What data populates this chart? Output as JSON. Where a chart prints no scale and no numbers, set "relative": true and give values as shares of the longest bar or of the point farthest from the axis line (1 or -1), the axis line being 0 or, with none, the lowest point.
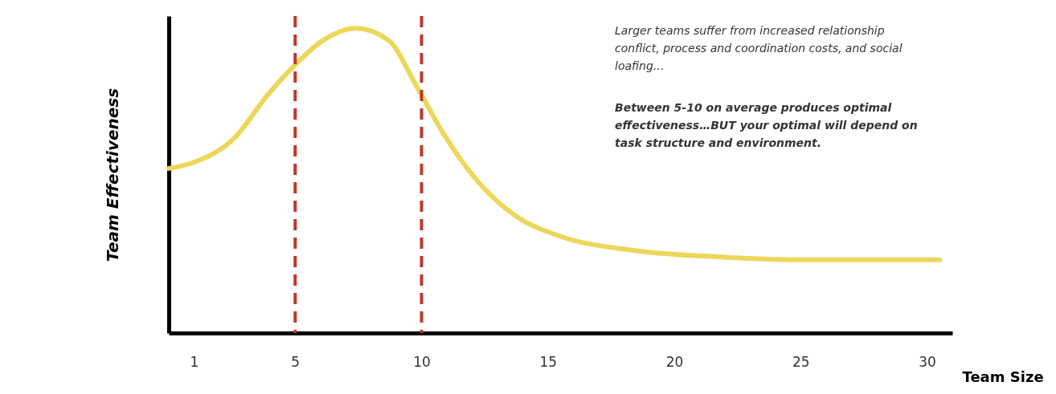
{
  "chart_data": {
    "type": "line",
    "relative": true,
    "xlabel": "Team Size",
    "ylabel": "Team Effectiveness",
    "xlim": [
      0,
      31
    ],
    "xticks": [
      1,
      5,
      10,
      15,
      20,
      25,
      30
    ],
    "x": [
      0,
      1,
      2.6,
      3.9,
      5,
      6.1,
      7.4,
      8.7,
      9.8,
      10.9,
      12.2,
      13.8,
      15.4,
      18.5,
      21.7,
      24.9,
      30.5
    ],
    "series": [
      {
        "color": "#ecd75a",
        "values": [
          0.54,
          0.56,
          0.64,
          0.78,
          0.88,
          0.96,
          1,
          0.96,
          0.81,
          0.65,
          0.5,
          0.38,
          0.32,
          0.27,
          0.25,
          0.24,
          0.24
        ]
      }
    ],
    "ref_lines": [
      {
        "axis": "x",
        "value": 5,
        "color": "#c0392b",
        "line_style": "dashed"
      },
      {
        "axis": "x",
        "value": 10,
        "color": "#c0392b",
        "line_style": "dashed"
      }
    ],
    "annotations": [
      "Larger teams suffer from increased relationship conflict, process and coordination costs, and social loafing…",
      "Between 5-10 on average produces optimal effectiveness…BUT your optimal will depend on task structure and environment."
    ],
    "tick_labels": "x"
  }
}
